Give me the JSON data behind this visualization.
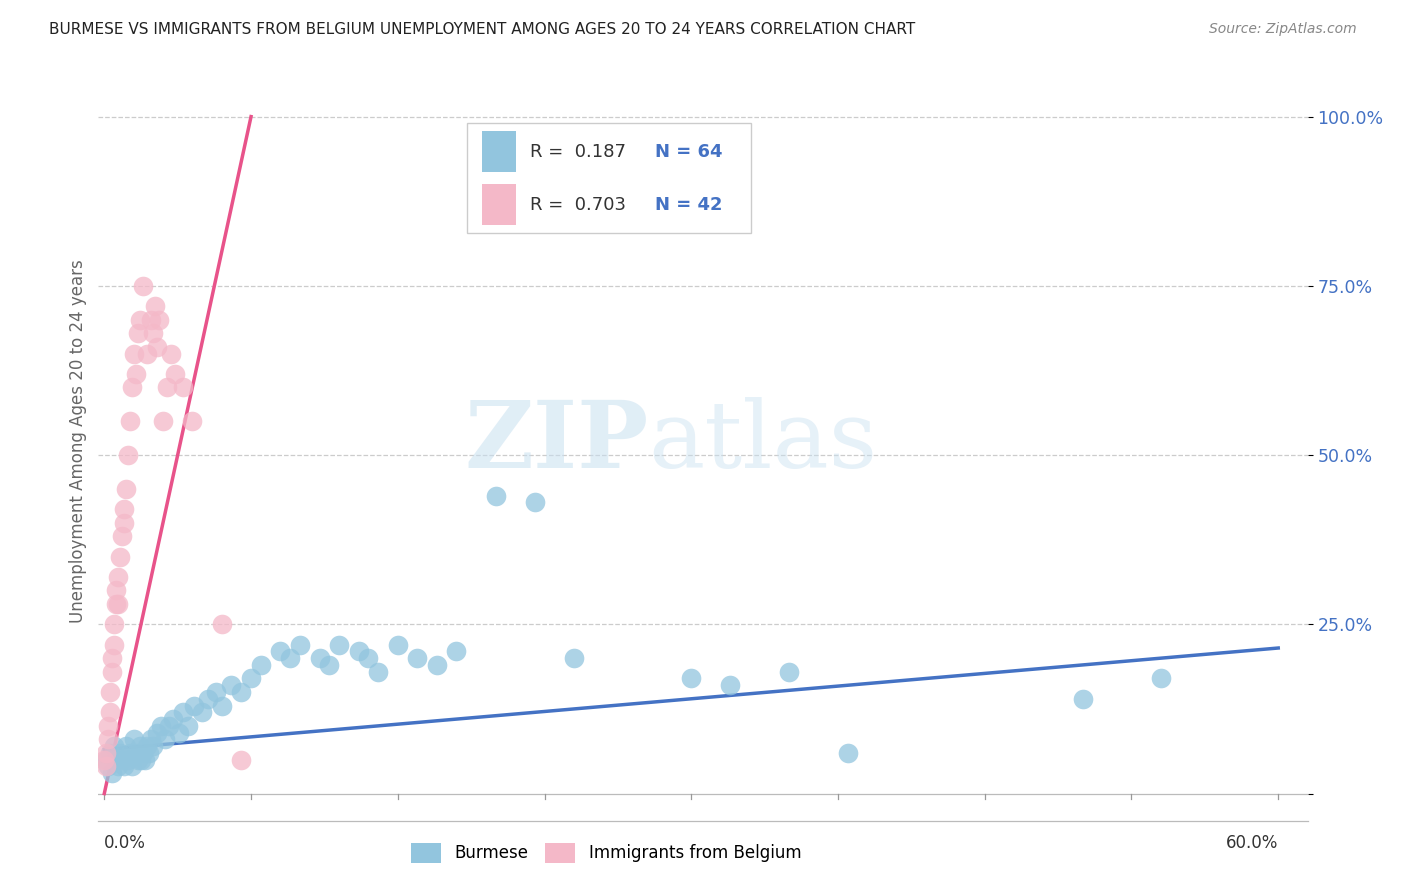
{
  "title": "BURMESE VS IMMIGRANTS FROM BELGIUM UNEMPLOYMENT AMONG AGES 20 TO 24 YEARS CORRELATION CHART",
  "source": "Source: ZipAtlas.com",
  "ylabel": "Unemployment Among Ages 20 to 24 years",
  "watermark_zip": "ZIP",
  "watermark_atlas": "atlas",
  "legend_r1": "R =  0.187",
  "legend_n1": "N = 64",
  "legend_r2": "R =  0.703",
  "legend_n2": "N = 42",
  "blue_color": "#92c5de",
  "pink_color": "#f4b8c8",
  "line_blue": "#4472c4",
  "line_pink": "#e8538a",
  "ytick_color": "#4472c4",
  "title_color": "#222222",
  "source_color": "#888888",
  "ylabel_color": "#666666",
  "blue_x": [
    0.001,
    0.002,
    0.003,
    0.004,
    0.005,
    0.006,
    0.007,
    0.008,
    0.009,
    0.01,
    0.011,
    0.012,
    0.013,
    0.014,
    0.015,
    0.016,
    0.017,
    0.018,
    0.019,
    0.02,
    0.021,
    0.022,
    0.023,
    0.024,
    0.025,
    0.027,
    0.029,
    0.031,
    0.033,
    0.035,
    0.038,
    0.04,
    0.043,
    0.046,
    0.05,
    0.053,
    0.057,
    0.06,
    0.065,
    0.07,
    0.075,
    0.08,
    0.09,
    0.095,
    0.1,
    0.11,
    0.115,
    0.12,
    0.13,
    0.135,
    0.14,
    0.15,
    0.16,
    0.17,
    0.18,
    0.2,
    0.22,
    0.24,
    0.3,
    0.32,
    0.35,
    0.38,
    0.5,
    0.54
  ],
  "blue_y": [
    0.05,
    0.04,
    0.06,
    0.03,
    0.07,
    0.05,
    0.04,
    0.06,
    0.05,
    0.04,
    0.07,
    0.05,
    0.06,
    0.04,
    0.08,
    0.06,
    0.05,
    0.07,
    0.05,
    0.06,
    0.05,
    0.07,
    0.06,
    0.08,
    0.07,
    0.09,
    0.1,
    0.08,
    0.1,
    0.11,
    0.09,
    0.12,
    0.1,
    0.13,
    0.12,
    0.14,
    0.15,
    0.13,
    0.16,
    0.15,
    0.17,
    0.19,
    0.21,
    0.2,
    0.22,
    0.2,
    0.19,
    0.22,
    0.21,
    0.2,
    0.18,
    0.22,
    0.2,
    0.19,
    0.21,
    0.44,
    0.43,
    0.2,
    0.17,
    0.16,
    0.18,
    0.06,
    0.14,
    0.17
  ],
  "pink_x": [
    0.0,
    0.001,
    0.001,
    0.002,
    0.002,
    0.003,
    0.003,
    0.004,
    0.004,
    0.005,
    0.005,
    0.006,
    0.006,
    0.007,
    0.007,
    0.008,
    0.009,
    0.01,
    0.01,
    0.011,
    0.012,
    0.013,
    0.014,
    0.015,
    0.016,
    0.017,
    0.018,
    0.02,
    0.022,
    0.024,
    0.025,
    0.026,
    0.027,
    0.028,
    0.03,
    0.032,
    0.034,
    0.036,
    0.04,
    0.045,
    0.06,
    0.07
  ],
  "pink_y": [
    0.05,
    0.04,
    0.06,
    0.08,
    0.1,
    0.12,
    0.15,
    0.18,
    0.2,
    0.22,
    0.25,
    0.28,
    0.3,
    0.32,
    0.28,
    0.35,
    0.38,
    0.4,
    0.42,
    0.45,
    0.5,
    0.55,
    0.6,
    0.65,
    0.62,
    0.68,
    0.7,
    0.75,
    0.65,
    0.7,
    0.68,
    0.72,
    0.66,
    0.7,
    0.55,
    0.6,
    0.65,
    0.62,
    0.6,
    0.55,
    0.25,
    0.05
  ],
  "blue_line_x": [
    0.0,
    0.6
  ],
  "blue_line_y": [
    0.065,
    0.215
  ],
  "pink_line_x": [
    0.0,
    0.075
  ],
  "pink_line_y": [
    0.0,
    1.0
  ],
  "xlim": [
    -0.003,
    0.615
  ],
  "ylim": [
    -0.04,
    1.08
  ],
  "yticks": [
    0.0,
    0.25,
    0.5,
    0.75,
    1.0
  ],
  "ytick_labels": [
    "",
    "25.0%",
    "50.0%",
    "75.0%",
    "100.0%"
  ]
}
